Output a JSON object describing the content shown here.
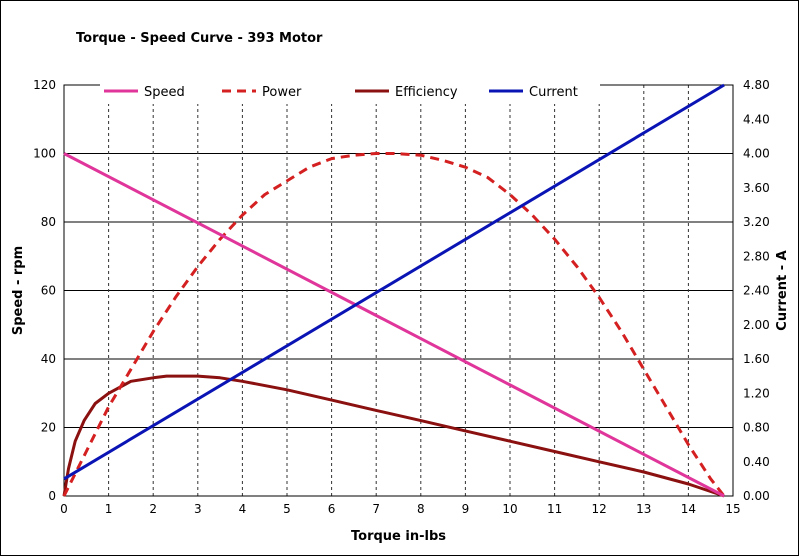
{
  "chart_data": {
    "type": "line",
    "title": "Torque - Speed Curve  - 393 Motor",
    "xlabel": "Torque in-lbs",
    "ylabel": "Speed - rpm",
    "y2label": "Current - A",
    "xlim": [
      0,
      15
    ],
    "ylim": [
      0,
      120
    ],
    "y2lim": [
      0,
      4.8
    ],
    "x_ticks": [
      "0",
      "1",
      "2",
      "3",
      "4",
      "5",
      "6",
      "7",
      "8",
      "9",
      "10",
      "11",
      "12",
      "13",
      "14",
      "15"
    ],
    "y_ticks": [
      "0",
      "20",
      "40",
      "60",
      "80",
      "100",
      "120"
    ],
    "y2_ticks": [
      "0.00",
      "0.40",
      "0.80",
      "1.20",
      "1.60",
      "2.00",
      "2.40",
      "2.80",
      "3.20",
      "3.60",
      "4.00",
      "4.40",
      "4.80"
    ],
    "grid": "horizontal solid, vertical dashed",
    "legend_position": "top",
    "series": [
      {
        "name": "Speed",
        "color": "#e0359a",
        "style": "solid",
        "axis": "left",
        "points": [
          [
            0,
            100
          ],
          [
            14.8,
            0
          ]
        ]
      },
      {
        "name": "Power",
        "color": "#d42020",
        "style": "dashed",
        "axis": "left",
        "points": [
          [
            0,
            0
          ],
          [
            0.5,
            13
          ],
          [
            1,
            26
          ],
          [
            1.5,
            37
          ],
          [
            2,
            48
          ],
          [
            2.5,
            58
          ],
          [
            3,
            67
          ],
          [
            3.5,
            75
          ],
          [
            4,
            82
          ],
          [
            4.5,
            88
          ],
          [
            5,
            92
          ],
          [
            5.5,
            96
          ],
          [
            6,
            98.5
          ],
          [
            6.5,
            99.5
          ],
          [
            7,
            100
          ],
          [
            7.4,
            100
          ],
          [
            8,
            99.5
          ],
          [
            8.5,
            98
          ],
          [
            9,
            96
          ],
          [
            9.5,
            93
          ],
          [
            10,
            88
          ],
          [
            10.5,
            82
          ],
          [
            11,
            75
          ],
          [
            11.5,
            67
          ],
          [
            12,
            58
          ],
          [
            12.5,
            48
          ],
          [
            13,
            37
          ],
          [
            13.5,
            26
          ],
          [
            14,
            15
          ],
          [
            14.5,
            5
          ],
          [
            14.8,
            0
          ]
        ]
      },
      {
        "name": "Efficiency",
        "color": "#8b1010",
        "style": "solid",
        "axis": "left",
        "points": [
          [
            0,
            0
          ],
          [
            0.1,
            8
          ],
          [
            0.25,
            16
          ],
          [
            0.45,
            22
          ],
          [
            0.7,
            27
          ],
          [
            1,
            30
          ],
          [
            1.5,
            33.5
          ],
          [
            2,
            34.5
          ],
          [
            2.3,
            35
          ],
          [
            3,
            35
          ],
          [
            3.5,
            34.5
          ],
          [
            4,
            33.5
          ],
          [
            5,
            31
          ],
          [
            6,
            28
          ],
          [
            7,
            25
          ],
          [
            8,
            22
          ],
          [
            9,
            19
          ],
          [
            10,
            16
          ],
          [
            11,
            13
          ],
          [
            12,
            10
          ],
          [
            13,
            7
          ],
          [
            14,
            3.5
          ],
          [
            14.8,
            0
          ]
        ]
      },
      {
        "name": "Current",
        "color": "#0a14b4",
        "style": "solid",
        "axis": "right",
        "points": [
          [
            0,
            0.2
          ],
          [
            14.8,
            4.8
          ]
        ]
      }
    ]
  }
}
